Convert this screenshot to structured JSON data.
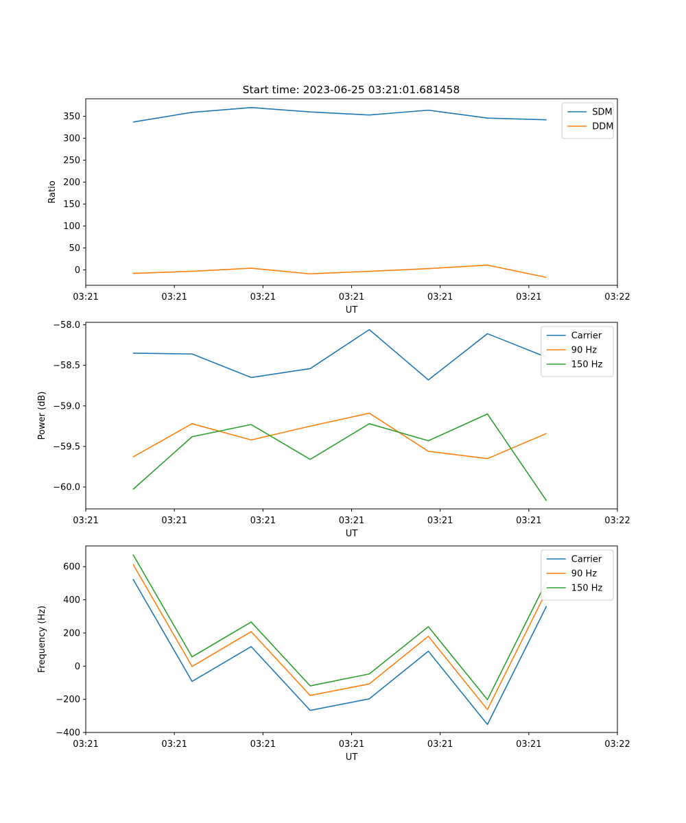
{
  "figure_title": "Start time: 2023-06-25 03:21:01.681458",
  "chart_data": [
    {
      "type": "line",
      "title": "Start time: 2023-06-25 03:21:01.681458",
      "xlabel": "UT",
      "ylabel": "Ratio",
      "x": [
        1,
        2,
        3,
        4,
        5,
        6,
        7,
        8
      ],
      "xlim": [
        0.2,
        9.2
      ],
      "xtick_positions": [
        0.2,
        1.7,
        3.2,
        4.7,
        6.2,
        7.7,
        9.2
      ],
      "xtick_labels": [
        "03:21",
        "03:21",
        "03:21",
        "03:21",
        "03:21",
        "03:21",
        "03:22"
      ],
      "ylim": [
        -35,
        390
      ],
      "yticks": [
        0,
        50,
        100,
        150,
        200,
        250,
        300,
        350
      ],
      "ytick_labels": [
        "0",
        "50",
        "100",
        "150",
        "200",
        "250",
        "300",
        "350"
      ],
      "legend": "top-right",
      "grid": false,
      "series": [
        {
          "name": "SDM",
          "color": "#1f77b4",
          "values": [
            337,
            359,
            370,
            360,
            353,
            364,
            346,
            342
          ]
        },
        {
          "name": "DDM",
          "color": "#ff7f0e",
          "values": [
            -8,
            -3,
            4,
            -9,
            -3,
            3,
            11,
            -17
          ]
        }
      ]
    },
    {
      "type": "line",
      "xlabel": "UT",
      "ylabel": "Power (dB)",
      "x": [
        1,
        2,
        3,
        4,
        5,
        6,
        7,
        8
      ],
      "xlim": [
        0.2,
        9.2
      ],
      "xtick_positions": [
        0.2,
        1.7,
        3.2,
        4.7,
        6.2,
        7.7,
        9.2
      ],
      "xtick_labels": [
        "03:21",
        "03:21",
        "03:21",
        "03:21",
        "03:21",
        "03:21",
        "03:22"
      ],
      "ylim": [
        -60.27,
        -57.97
      ],
      "yticks": [
        -60.0,
        -59.5,
        -59.0,
        -58.5,
        -58.0
      ],
      "ytick_labels": [
        "−60.0",
        "−59.5",
        "−59.0",
        "−58.5",
        "−58.0"
      ],
      "legend": "top-right",
      "grid": false,
      "series": [
        {
          "name": "Carrier",
          "color": "#1f77b4",
          "values": [
            -58.35,
            -58.36,
            -58.65,
            -58.54,
            -58.06,
            -58.68,
            -58.11,
            -58.4
          ]
        },
        {
          "name": "90 Hz",
          "color": "#ff7f0e",
          "values": [
            -59.63,
            -59.22,
            -59.42,
            -59.25,
            -59.09,
            -59.56,
            -59.65,
            -59.34
          ]
        },
        {
          "name": "150 Hz",
          "color": "#2ca02c",
          "values": [
            -60.03,
            -59.38,
            -59.23,
            -59.66,
            -59.22,
            -59.43,
            -59.1,
            -60.17
          ]
        }
      ]
    },
    {
      "type": "line",
      "xlabel": "UT",
      "ylabel": "Frequency (Hz)",
      "x": [
        1,
        2,
        3,
        4,
        5,
        6,
        7,
        8
      ],
      "xlim": [
        0.2,
        9.2
      ],
      "xtick_positions": [
        0.2,
        1.7,
        3.2,
        4.7,
        6.2,
        7.7,
        9.2
      ],
      "xtick_labels": [
        "03:21",
        "03:21",
        "03:21",
        "03:21",
        "03:21",
        "03:21",
        "03:22"
      ],
      "ylim": [
        -400,
        725
      ],
      "yticks": [
        -400,
        -200,
        0,
        200,
        400,
        600
      ],
      "ytick_labels": [
        "−400",
        "−200",
        "0",
        "200",
        "400",
        "600"
      ],
      "legend": "top-right",
      "grid": false,
      "series": [
        {
          "name": "Carrier",
          "color": "#1f77b4",
          "values": [
            525,
            -92,
            118,
            -267,
            -197,
            90,
            -352,
            362
          ]
        },
        {
          "name": "90 Hz",
          "color": "#ff7f0e",
          "values": [
            615,
            -2,
            208,
            -177,
            -107,
            180,
            -262,
            452
          ]
        },
        {
          "name": "150 Hz",
          "color": "#2ca02c",
          "values": [
            673,
            56,
            266,
            -119,
            -47,
            238,
            -202,
            511
          ]
        }
      ]
    }
  ]
}
